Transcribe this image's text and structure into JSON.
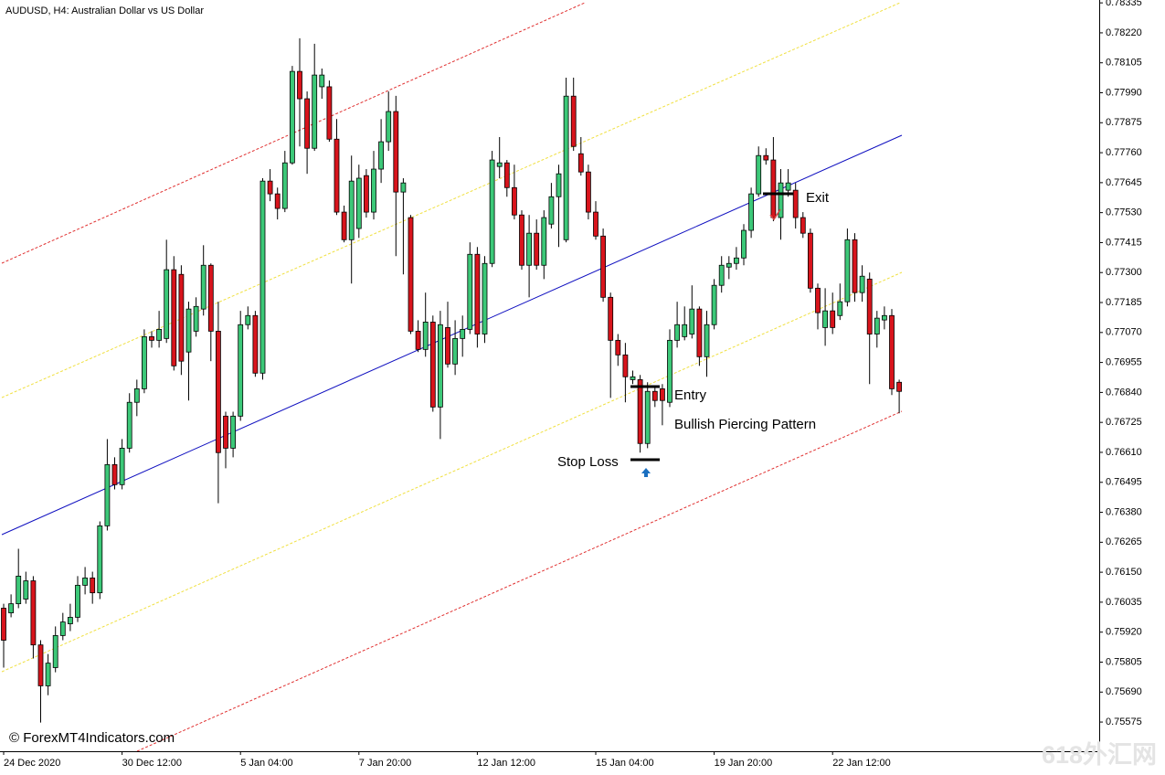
{
  "chart_data": {
    "type": "candlestick",
    "title": "AUDUSD, H4:  Australian Dollar vs US Dollar",
    "annotations": [
      "Exit",
      "Entry",
      "Bullish Piercing Pattern",
      "Stop Loss"
    ],
    "watermarks": [
      "© ForexMT4Indicators.com",
      "618外汇网"
    ],
    "up_color": "#3cc878",
    "down_color": "#d8141c",
    "categories": [
      "24 Dec 2020",
      null,
      null,
      null,
      null,
      null,
      null,
      null,
      null,
      null,
      null,
      null,
      null,
      null,
      null,
      null,
      "30 Dec 12:00",
      null,
      null,
      null,
      null,
      null,
      null,
      null,
      null,
      null,
      null,
      null,
      null,
      null,
      null,
      null,
      "5 Jan 04:00",
      null,
      null,
      null,
      null,
      null,
      null,
      null,
      null,
      null,
      null,
      null,
      null,
      null,
      null,
      null,
      "7 Jan 20:00",
      null,
      null,
      null,
      null,
      null,
      null,
      null,
      null,
      null,
      null,
      null,
      null,
      null,
      null,
      null,
      "12 Jan 12:00",
      null,
      null,
      null,
      null,
      null,
      null,
      null,
      null,
      null,
      null,
      null,
      null,
      null,
      null,
      null,
      "15 Jan 04:00",
      null,
      null,
      null,
      null,
      null,
      null,
      null,
      null,
      null,
      null,
      null,
      null,
      null,
      null,
      null,
      "19 Jan 20:00",
      null,
      null,
      null,
      null,
      null,
      null,
      null,
      null,
      null,
      null,
      null,
      null,
      null,
      null,
      null,
      "22 Jan 12:00",
      null,
      null,
      null,
      null,
      null,
      null,
      null,
      null,
      null
    ],
    "open": [
      0.76012,
      0.75994,
      0.76029,
      0.76047,
      0.76117,
      0.75871,
      0.75714,
      0.75784,
      0.75907,
      0.75952,
      0.75977,
      0.761,
      0.76128,
      0.76071,
      0.76328,
      0.76563,
      0.76486,
      0.76626,
      0.76802,
      0.76854,
      0.77054,
      0.7704,
      0.77047,
      0.77311,
      0.77293,
      0.76995,
      0.77075,
      0.7716,
      0.77328,
      0.77075,
      0.76749,
      0.76626,
      0.76749,
      0.771,
      0.77135,
      0.76914,
      0.77651,
      0.77602,
      0.77546,
      0.77721,
      0.78072,
      0.77967,
      0.77777,
      0.78013,
      0.78013,
      0.77812,
      0.77532,
      0.77426,
      0.77469,
      0.77672,
      0.77532,
      0.77697,
      0.77802,
      0.77918,
      0.77609,
      0.77511,
      0.77075,
      0.77005,
      0.7711,
      0.76784,
      0.77089,
      0.76949,
      0.77047,
      0.77082,
      0.7737,
      0.77064,
      0.77335,
      0.77707,
      0.77721,
      0.77626,
      0.77521,
      0.77328,
      0.77451,
      0.77328,
      0.77486,
      0.77591,
      0.77426,
      0.77977,
      0.77756,
      0.77686,
      0.77532,
      0.7744,
      0.77205,
      0.7704,
      0.76984,
      0.76889,
      0.76889,
      0.76644,
      0.76844,
      0.76854,
      0.76802,
      0.7704,
      0.77054,
      0.77064,
      0.7716,
      0.76977,
      0.771,
      0.77251,
      0.77321,
      0.77335,
      0.77356,
      0.77462,
      0.77602,
      0.77749,
      0.77732,
      0.77511,
      0.77616,
      0.77616,
      0.77511,
      0.77451,
      0.7724,
      0.77089,
      0.77153,
      0.77135,
      0.77188,
      0.77426,
      0.77223,
      0.77275,
      0.77064,
      0.77118,
      0.77135,
      0.76879
    ],
    "high": [
      0.76029,
      0.76065,
      0.7624,
      0.76152,
      0.76135,
      0.75889,
      0.75836,
      0.75942,
      0.75994,
      0.76029,
      0.76135,
      0.7617,
      0.76152,
      0.76345,
      0.76661,
      0.76591,
      0.76661,
      0.76837,
      0.76889,
      0.77082,
      0.77075,
      0.77153,
      0.77426,
      0.77363,
      0.77328,
      0.77188,
      0.77205,
      0.77405,
      0.77335,
      0.77188,
      0.76766,
      0.76766,
      0.77153,
      0.7717,
      0.77153,
      0.77662,
      0.77697,
      0.77626,
      0.77767,
      0.78093,
      0.78199,
      0.77995,
      0.78178,
      0.78083,
      0.78037,
      0.77889,
      0.77557,
      0.77749,
      0.77714,
      0.77697,
      0.77767,
      0.77889,
      0.77995,
      0.77978,
      0.77662,
      0.77521,
      0.77117,
      0.77223,
      0.77135,
      0.77153,
      0.77188,
      0.77117,
      0.77135,
      0.77416,
      0.77398,
      0.77363,
      0.77767,
      0.7782,
      0.77732,
      0.77714,
      0.77539,
      0.77521,
      0.77504,
      0.77539,
      0.77644,
      0.77714,
      0.78048,
      0.78048,
      0.7782,
      0.77714,
      0.77574,
      0.77469,
      0.77223,
      0.77064,
      0.7703,
      0.76924,
      0.76907,
      0.76879,
      0.76865,
      0.76872,
      0.77082,
      0.77188,
      0.7717,
      0.77251,
      0.7717,
      0.77153,
      0.77275,
      0.77363,
      0.77363,
      0.77398,
      0.77486,
      0.77626,
      0.77784,
      0.77777,
      0.7782,
      0.77697,
      0.77697,
      0.77644,
      0.77532,
      0.77469,
      0.77258,
      0.7724,
      0.77223,
      0.77258,
      0.77469,
      0.77451,
      0.77328,
      0.773,
      0.77153,
      0.7717,
      0.7716,
      0.76889
    ],
    "low": [
      0.75784,
      0.75977,
      0.76012,
      0.76029,
      0.75819,
      0.75573,
      0.75678,
      0.75766,
      0.75889,
      0.75924,
      0.75959,
      0.76065,
      0.76029,
      0.76047,
      0.7631,
      0.76468,
      0.76468,
      0.76609,
      0.76749,
      0.76837,
      0.77012,
      0.77012,
      0.7703,
      0.76924,
      0.76907,
      0.76809,
      0.77054,
      0.77135,
      0.7696,
      0.76415,
      0.76549,
      0.76591,
      0.76731,
      0.77082,
      0.769,
      0.76889,
      0.77574,
      0.77504,
      0.77532,
      0.77714,
      0.77784,
      0.77679,
      0.77767,
      0.77967,
      0.77802,
      0.77521,
      0.77416,
      0.77258,
      0.77433,
      0.77511,
      0.77504,
      0.77644,
      0.77767,
      0.77363,
      0.77293,
      0.77064,
      0.76995,
      0.76977,
      0.76766,
      0.76661,
      0.76935,
      0.76907,
      0.76977,
      0.77064,
      0.77012,
      0.7703,
      0.77321,
      0.77662,
      0.77591,
      0.77504,
      0.77311,
      0.77205,
      0.77311,
      0.77275,
      0.77469,
      0.77398,
      0.77416,
      0.77767,
      0.77672,
      0.77504,
      0.77426,
      0.77188,
      0.76819,
      0.76942,
      0.76802,
      0.76872,
      0.76609,
      0.76626,
      0.76784,
      0.76714,
      0.76784,
      0.77012,
      0.7704,
      0.77047,
      0.76942,
      0.769,
      0.77082,
      0.77223,
      0.77275,
      0.77311,
      0.77328,
      0.77433,
      0.77591,
      0.77714,
      0.77497,
      0.77426,
      0.77591,
      0.77469,
      0.77433,
      0.77223,
      0.77082,
      0.77019,
      0.77064,
      0.77118,
      0.7717,
      0.77188,
      0.77188,
      0.76872,
      0.77012,
      0.77082,
      0.7683,
      0.7676
    ],
    "close": [
      0.75889,
      0.76029,
      0.76135,
      0.76117,
      0.75871,
      0.75714,
      0.75801,
      0.75907,
      0.75959,
      0.75977,
      0.761,
      0.76128,
      0.76071,
      0.76328,
      0.76563,
      0.76486,
      0.76626,
      0.76802,
      0.76854,
      0.77054,
      0.7704,
      0.77082,
      0.77311,
      0.76942,
      0.7696,
      0.7716,
      0.7717,
      0.77328,
      0.77075,
      0.76609,
      0.76626,
      0.76749,
      0.771,
      0.77135,
      0.76914,
      0.77651,
      0.77602,
      0.77546,
      0.77721,
      0.78072,
      0.77967,
      0.77777,
      0.78058,
      0.78058,
      0.77812,
      0.77532,
      0.77426,
      0.77651,
      0.77662,
      0.77532,
      0.77697,
      0.77802,
      0.77918,
      0.77609,
      0.77644,
      0.77075,
      0.77005,
      0.7711,
      0.76784,
      0.771,
      0.76949,
      0.77047,
      0.77082,
      0.7737,
      0.77064,
      0.77335,
      0.77732,
      0.77721,
      0.77626,
      0.77521,
      0.77328,
      0.77451,
      0.77328,
      0.77511,
      0.77591,
      0.77679,
      0.77977,
      0.77784,
      0.77686,
      0.77532,
      0.7744,
      0.77205,
      0.7704,
      0.76984,
      0.769,
      0.769,
      0.76644,
      0.76844,
      0.76809,
      0.76809,
      0.7704,
      0.771,
      0.771,
      0.7716,
      0.76977,
      0.771,
      0.77251,
      0.77328,
      0.77335,
      0.77356,
      0.77462,
      0.77602,
      0.77749,
      0.77732,
      0.77511,
      0.77644,
      0.77644,
      0.77511,
      0.77451,
      0.7724,
      0.77146,
      0.77153,
      0.77089,
      0.77188,
      0.77426,
      0.77223,
      0.77286,
      0.77064,
      0.77125,
      0.77135,
      0.76854,
      0.76844
    ],
    "ylim": [
      0.75463,
      0.78346
    ],
    "yticks": [
      0.78335,
      {
        "value": 0.7822,
        "label": "0.78220"
      },
      0.78105,
      {
        "value": 0.7799,
        "label": "0.77990"
      },
      0.77875,
      {
        "value": 0.7776,
        "label": "0.77760"
      },
      0.77645,
      {
        "value": 0.7753,
        "label": "0.77530"
      },
      0.77415,
      {
        "value": 0.773,
        "label": "0.77300"
      },
      0.77185,
      {
        "value": 0.7707,
        "label": "0.77070"
      },
      0.76955,
      {
        "value": 0.7684,
        "label": "0.76840"
      },
      0.76725,
      {
        "value": 0.7661,
        "label": "0.76610"
      },
      0.76495,
      {
        "value": 0.7638,
        "label": "0.76380"
      },
      0.76265,
      {
        "value": 0.7615,
        "label": "0.76150"
      },
      0.76035,
      {
        "value": 0.7592,
        "label": "0.75920"
      },
      0.75805,
      {
        "value": 0.7569,
        "label": "0.75690"
      },
      0.75575
    ]
  }
}
